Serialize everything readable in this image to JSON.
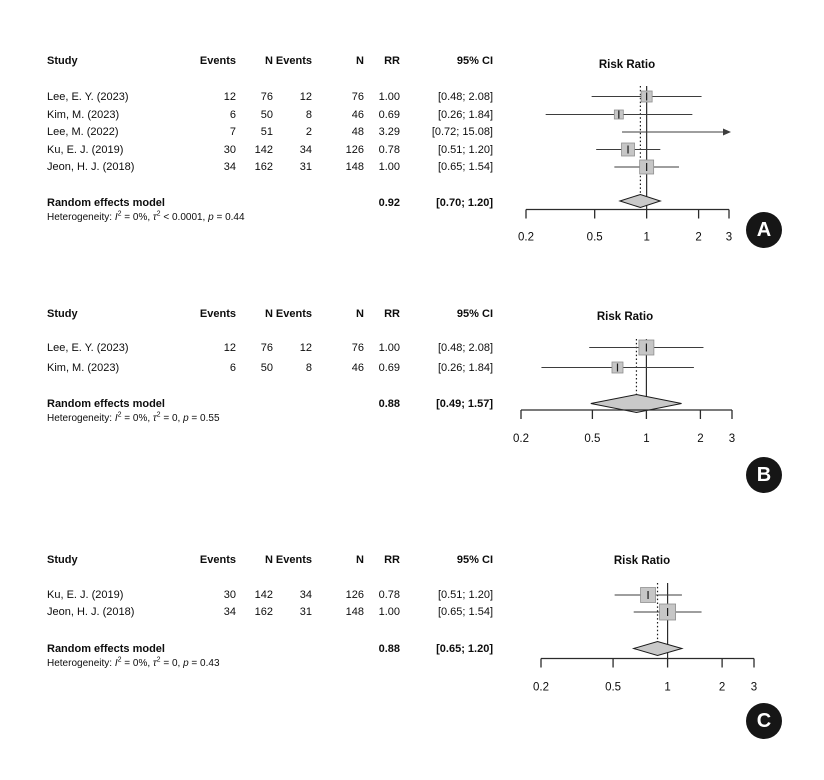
{
  "chart_data": [
    {
      "type": "forest",
      "panel_label": "A",
      "plot_title": "Risk Ratio",
      "table_headers": {
        "study": "Study",
        "events1": "Events",
        "n1": "N",
        "events2": "Events",
        "n2": "N",
        "rr": "RR",
        "ci": "95% CI"
      },
      "studies": [
        {
          "study": "Lee, E. Y. (2023)",
          "events1": 12,
          "n1": 76,
          "events2": 12,
          "n2": 76,
          "rr": 1.0,
          "ci_low": 0.48,
          "ci_high": 2.08,
          "rr_text": "1.00",
          "ci_text": "[0.48; 2.08]",
          "square_size": 11,
          "arrow_right": false
        },
        {
          "study": "Kim, M. (2023)",
          "events1": 6,
          "n1": 50,
          "events2": 8,
          "n2": 46,
          "rr": 0.69,
          "ci_low": 0.26,
          "ci_high": 1.84,
          "rr_text": "0.69",
          "ci_text": "[0.26; 1.84]",
          "square_size": 9,
          "arrow_right": false
        },
        {
          "study": "Lee, M. (2022)",
          "events1": 7,
          "n1": 51,
          "events2": 2,
          "n2": 48,
          "rr": 3.29,
          "ci_low": 0.72,
          "ci_high": 15.08,
          "rr_text": "3.29",
          "ci_text": "[0.72; 15.08]",
          "square_size": 0,
          "arrow_right": true
        },
        {
          "study": "Ku, E. J. (2019)",
          "events1": 30,
          "n1": 142,
          "events2": 34,
          "n2": 126,
          "rr": 0.78,
          "ci_low": 0.51,
          "ci_high": 1.2,
          "rr_text": "0.78",
          "ci_text": "[0.51; 1.20]",
          "square_size": 13,
          "arrow_right": false
        },
        {
          "study": "Jeon, H. J. (2018)",
          "events1": 34,
          "n1": 162,
          "events2": 31,
          "n2": 148,
          "rr": 1.0,
          "ci_low": 0.65,
          "ci_high": 1.54,
          "rr_text": "1.00",
          "ci_text": "[0.65; 1.54]",
          "square_size": 14,
          "arrow_right": false
        }
      ],
      "summary": {
        "label": "Random effects model",
        "rr": 0.92,
        "ci_low": 0.7,
        "ci_high": 1.2,
        "rr_text": "0.92",
        "ci_text": "[0.70; 1.20]"
      },
      "heterogeneity": {
        "lead": "Heterogeneity: ",
        "i_sym": "I",
        "i_sup": "2",
        "i_rest": " = 0%, ",
        "tau_sym": "τ",
        "tau_sup": "2",
        "tau_rest": " < 0.0001, ",
        "p_sym": "p",
        "p_rest": " = 0.44"
      },
      "x_axis": {
        "scale": "log",
        "min": 0.2,
        "max": 3,
        "ticks": [
          0.2,
          0.5,
          1,
          2,
          3
        ],
        "tick_labels": [
          "0.2",
          "0.5",
          "1",
          "2",
          "3"
        ]
      },
      "reference_line": 1.0,
      "pooled_line": 0.92
    },
    {
      "type": "forest",
      "panel_label": "B",
      "plot_title": "Risk Ratio",
      "table_headers": {
        "study": "Study",
        "events1": "Events",
        "n1": "N",
        "events2": "Events",
        "n2": "N",
        "rr": "RR",
        "ci": "95% CI"
      },
      "studies": [
        {
          "study": "Lee, E. Y. (2023)",
          "events1": 12,
          "n1": 76,
          "events2": 12,
          "n2": 76,
          "rr": 1.0,
          "ci_low": 0.48,
          "ci_high": 2.08,
          "rr_text": "1.00",
          "ci_text": "[0.48; 2.08]",
          "square_size": 15,
          "arrow_right": false
        },
        {
          "study": "Kim, M. (2023)",
          "events1": 6,
          "n1": 50,
          "events2": 8,
          "n2": 46,
          "rr": 0.69,
          "ci_low": 0.26,
          "ci_high": 1.84,
          "rr_text": "0.69",
          "ci_text": "[0.26; 1.84]",
          "square_size": 11,
          "arrow_right": false
        }
      ],
      "summary": {
        "label": "Random effects model",
        "rr": 0.88,
        "ci_low": 0.49,
        "ci_high": 1.57,
        "rr_text": "0.88",
        "ci_text": "[0.49; 1.57]"
      },
      "heterogeneity": {
        "lead": "Heterogeneity: ",
        "i_sym": "I",
        "i_sup": "2",
        "i_rest": " = 0%, ",
        "tau_sym": "τ",
        "tau_sup": "2",
        "tau_rest": " = 0, ",
        "p_sym": "p",
        "p_rest": " = 0.55"
      },
      "x_axis": {
        "scale": "log",
        "min": 0.2,
        "max": 3,
        "ticks": [
          0.2,
          0.5,
          1,
          2,
          3
        ],
        "tick_labels": [
          "0.2",
          "0.5",
          "1",
          "2",
          "3"
        ]
      },
      "reference_line": 1.0,
      "pooled_line": 0.88
    },
    {
      "type": "forest",
      "panel_label": "C",
      "plot_title": "Risk Ratio",
      "table_headers": {
        "study": "Study",
        "events1": "Events",
        "n1": "N",
        "events2": "Events",
        "n2": "N",
        "rr": "RR",
        "ci": "95% CI"
      },
      "studies": [
        {
          "study": "Ku, E. J. (2019)",
          "events1": 30,
          "n1": 142,
          "events2": 34,
          "n2": 126,
          "rr": 0.78,
          "ci_low": 0.51,
          "ci_high": 1.2,
          "rr_text": "0.78",
          "ci_text": "[0.51; 1.20]",
          "square_size": 15,
          "arrow_right": false
        },
        {
          "study": "Jeon, H. J. (2018)",
          "events1": 34,
          "n1": 162,
          "events2": 31,
          "n2": 148,
          "rr": 1.0,
          "ci_low": 0.65,
          "ci_high": 1.54,
          "rr_text": "1.00",
          "ci_text": "[0.65; 1.54]",
          "square_size": 16,
          "arrow_right": false
        }
      ],
      "summary": {
        "label": "Random effects model",
        "rr": 0.88,
        "ci_low": 0.65,
        "ci_high": 1.2,
        "rr_text": "0.88",
        "ci_text": "[0.65; 1.20]"
      },
      "heterogeneity": {
        "lead": "Heterogeneity: ",
        "i_sym": "I",
        "i_sup": "2",
        "i_rest": " = 0%, ",
        "tau_sym": "τ",
        "tau_sup": "2",
        "tau_rest": " = 0, ",
        "p_sym": "p",
        "p_rest": " = 0.43"
      },
      "x_axis": {
        "scale": "log",
        "min": 0.2,
        "max": 3,
        "ticks": [
          0.2,
          0.5,
          1,
          2,
          3
        ],
        "tick_labels": [
          "0.2",
          "0.5",
          "1",
          "2",
          "3"
        ]
      },
      "reference_line": 1.0,
      "pooled_line": 0.88
    }
  ],
  "style_colors": {
    "square_fill": "#c6c6c6",
    "square_stroke": "#8f8f8f",
    "diamond_fill": "#c9c9c9",
    "diamond_stroke": "#1a1a1a",
    "line": "#3d3d3d",
    "axis": "#2b2b2b",
    "badge_bg": "#161616"
  }
}
